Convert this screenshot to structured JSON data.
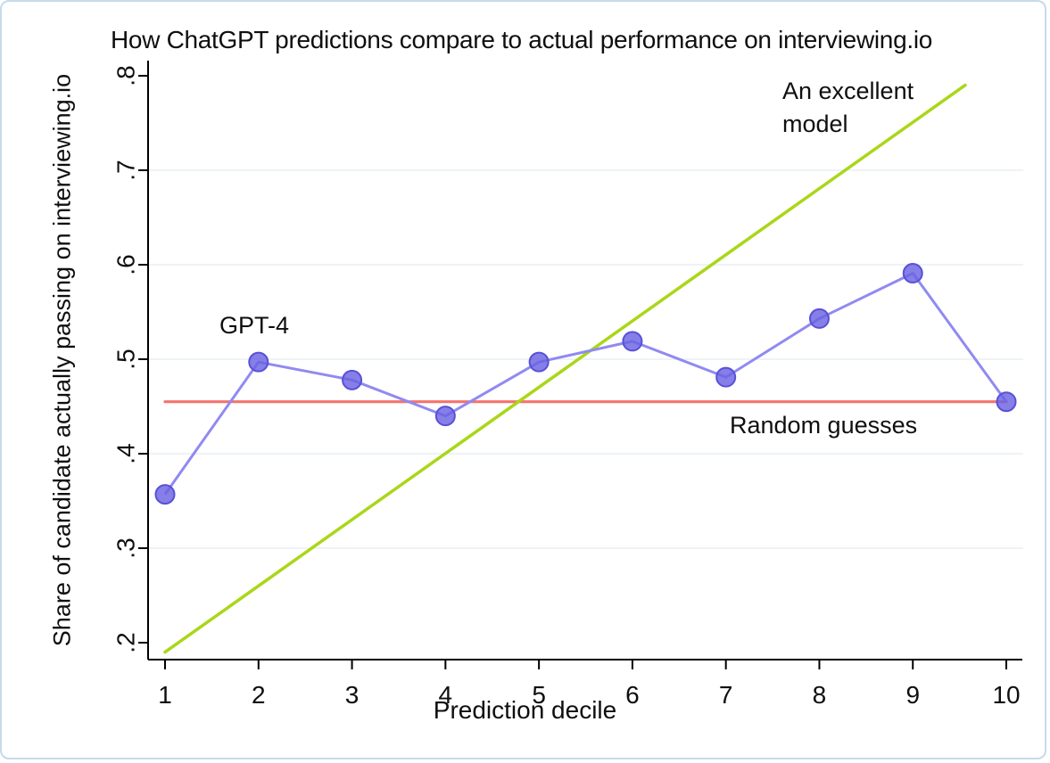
{
  "chart_data": {
    "type": "line",
    "title": "How ChatGPT predictions compare to actual performance on interviewing.io",
    "xlabel": "Prediction decile",
    "ylabel": "Share of candidate actually passing on interviewing.io",
    "categories": [
      1,
      2,
      3,
      4,
      5,
      6,
      7,
      8,
      9,
      10
    ],
    "series": [
      {
        "name": "GPT-4",
        "kind": "line-markers",
        "line_color": "#908af1",
        "marker_fill": "#6a63e2",
        "marker_edge": "#5950d8",
        "values": [
          0.357,
          0.497,
          0.478,
          0.44,
          0.497,
          0.519,
          0.481,
          0.543,
          0.591,
          0.455
        ]
      },
      {
        "name": "Random guesses",
        "kind": "hline",
        "line_color": "#f4736e",
        "y": 0.455,
        "x_range": [
          1,
          10
        ]
      },
      {
        "name": "An excellent model",
        "kind": "segment",
        "line_color": "#a9d718",
        "points": [
          [
            1.0,
            0.19
          ],
          [
            9.56,
            0.79
          ]
        ]
      }
    ],
    "axes": {
      "xtick_values": [
        1,
        2,
        3,
        4,
        5,
        6,
        7,
        8,
        9,
        10
      ],
      "xtick_labels": [
        "1",
        "2",
        "3",
        "4",
        "5",
        "6",
        "7",
        "8",
        "9",
        "10"
      ],
      "ytick_values": [
        0.2,
        0.3,
        0.4,
        0.5,
        0.6,
        0.7,
        0.8
      ],
      "ytick_labels": [
        ".2",
        ".3",
        ".4",
        ".5",
        ".6",
        ".7",
        ".8"
      ],
      "grid_values": [
        0.3,
        0.4,
        0.5,
        0.6,
        0.7
      ],
      "xlim": [
        1,
        10
      ],
      "ylim": [
        0.19,
        0.8
      ],
      "grid": true,
      "legend": "none (direct line labels)"
    },
    "annotations": {
      "gpt4": "GPT-4",
      "excellent": "An excellent\nmodel",
      "random": "Random guesses"
    }
  },
  "colors": {
    "background": "#ffffff",
    "frame_border": "#c7dbea",
    "gridline": "#e8eff4",
    "axis": "#000000",
    "text": "#0f0f0f"
  }
}
